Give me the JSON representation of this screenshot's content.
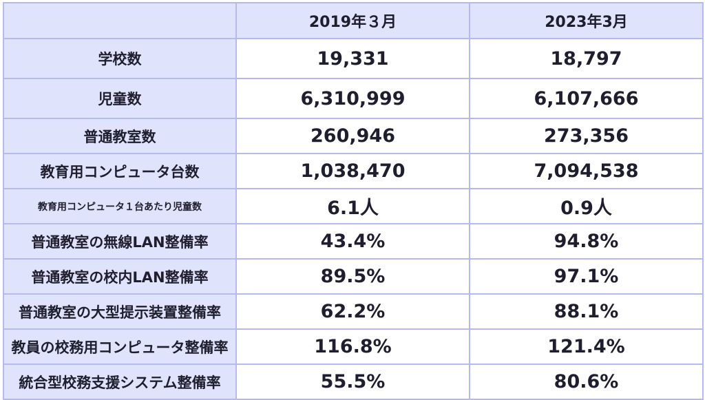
{
  "header": {
    "corner": "",
    "col1": "2019年３月",
    "col2": "2023年3月"
  },
  "rows": [
    {
      "label": "学校数",
      "v2019": "19,331",
      "v2023": "18,797"
    },
    {
      "label": "児童数",
      "v2019": "6,310,999",
      "v2023": "6,107,666"
    },
    {
      "label": "普通教室数",
      "v2019": "260,946",
      "v2023": "273,356"
    },
    {
      "label": "教育用コンピュータ台数",
      "v2019": "1,038,470",
      "v2023": "7,094,538"
    },
    {
      "label": "教育用コンピュータ１台あたり児童数",
      "v2019": "6.1人",
      "v2023": "0.9人"
    },
    {
      "label": "普通教室の無線LAN整備率",
      "v2019": "43.4%",
      "v2023": "94.8%"
    },
    {
      "label": "普通教室の校内LAN整備率",
      "v2019": "89.5%",
      "v2023": "97.1%"
    },
    {
      "label": "普通教室の大型提示装置整備率",
      "v2019": "62.2%",
      "v2023": "88.1%"
    },
    {
      "label": "教員の校務用コンピュータ整備率",
      "v2019": "116.8%",
      "v2023": "121.4%"
    },
    {
      "label": "統合型校務支援システム整備率",
      "v2019": "55.5%",
      "v2023": "80.6%"
    }
  ],
  "colors": {
    "header_bg": "#dfe3fb",
    "border": "#b4b9ee",
    "text": "#1e1e2e"
  }
}
